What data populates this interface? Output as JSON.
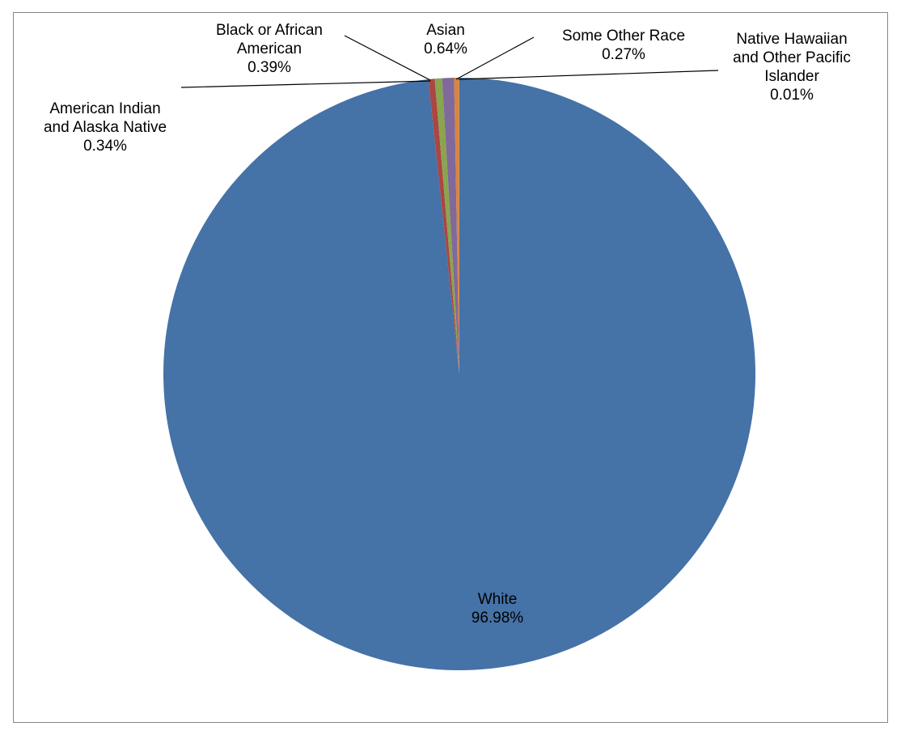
{
  "chart_data": {
    "type": "pie",
    "title": "",
    "start_angle_deg": 0,
    "direction": "clockwise",
    "legend": "none",
    "slices": [
      {
        "label_lines": [
          "White"
        ],
        "value": 96.98,
        "value_label": "96.98%",
        "color": "#4572A7"
      },
      {
        "label_lines": [
          "American Indian",
          "and Alaska Native"
        ],
        "value": 0.34,
        "value_label": "0.34%",
        "color": "#AA4643"
      },
      {
        "label_lines": [
          "Black or African",
          "American"
        ],
        "value": 0.39,
        "value_label": "0.39%",
        "color": "#89A54E"
      },
      {
        "label_lines": [
          "Asian"
        ],
        "value": 0.64,
        "value_label": "0.64%",
        "color": "#80699B"
      },
      {
        "label_lines": [
          "Some Other Race"
        ],
        "value": 0.27,
        "value_label": "0.27%",
        "color": "#DB843D"
      },
      {
        "label_lines": [
          "Native Hawaiian",
          "and Other Pacific",
          "Islander"
        ],
        "value": 0.01,
        "value_label": "0.01%",
        "color": "#3D96AE"
      }
    ]
  }
}
